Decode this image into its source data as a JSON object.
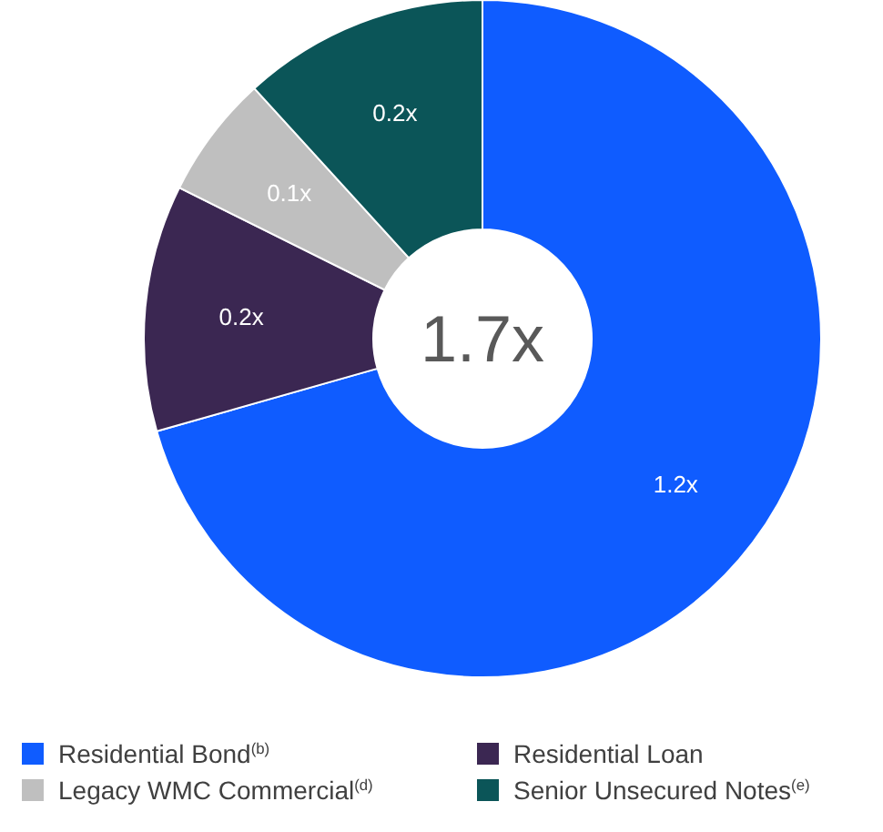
{
  "chart_data": {
    "type": "donut",
    "categories": [
      "Residential Bond$^{(b)}$",
      "Residential Loan",
      "Legacy WMC Commercial$^{(d)}$",
      "Senior Unsecured Notes$^{(e)}$"
    ],
    "values": [
      1.2,
      0.2,
      0.1,
      0.2
    ],
    "value_labels": [
      "1.2x",
      "0.2x",
      "0.1x",
      "0.2x"
    ],
    "colors": [
      "#0f5cff",
      "#3b2752",
      "#bfbfbf",
      "#0b5558"
    ],
    "annotations": [
      "1.7x"
    ],
    "legend": "bottom"
  }
}
